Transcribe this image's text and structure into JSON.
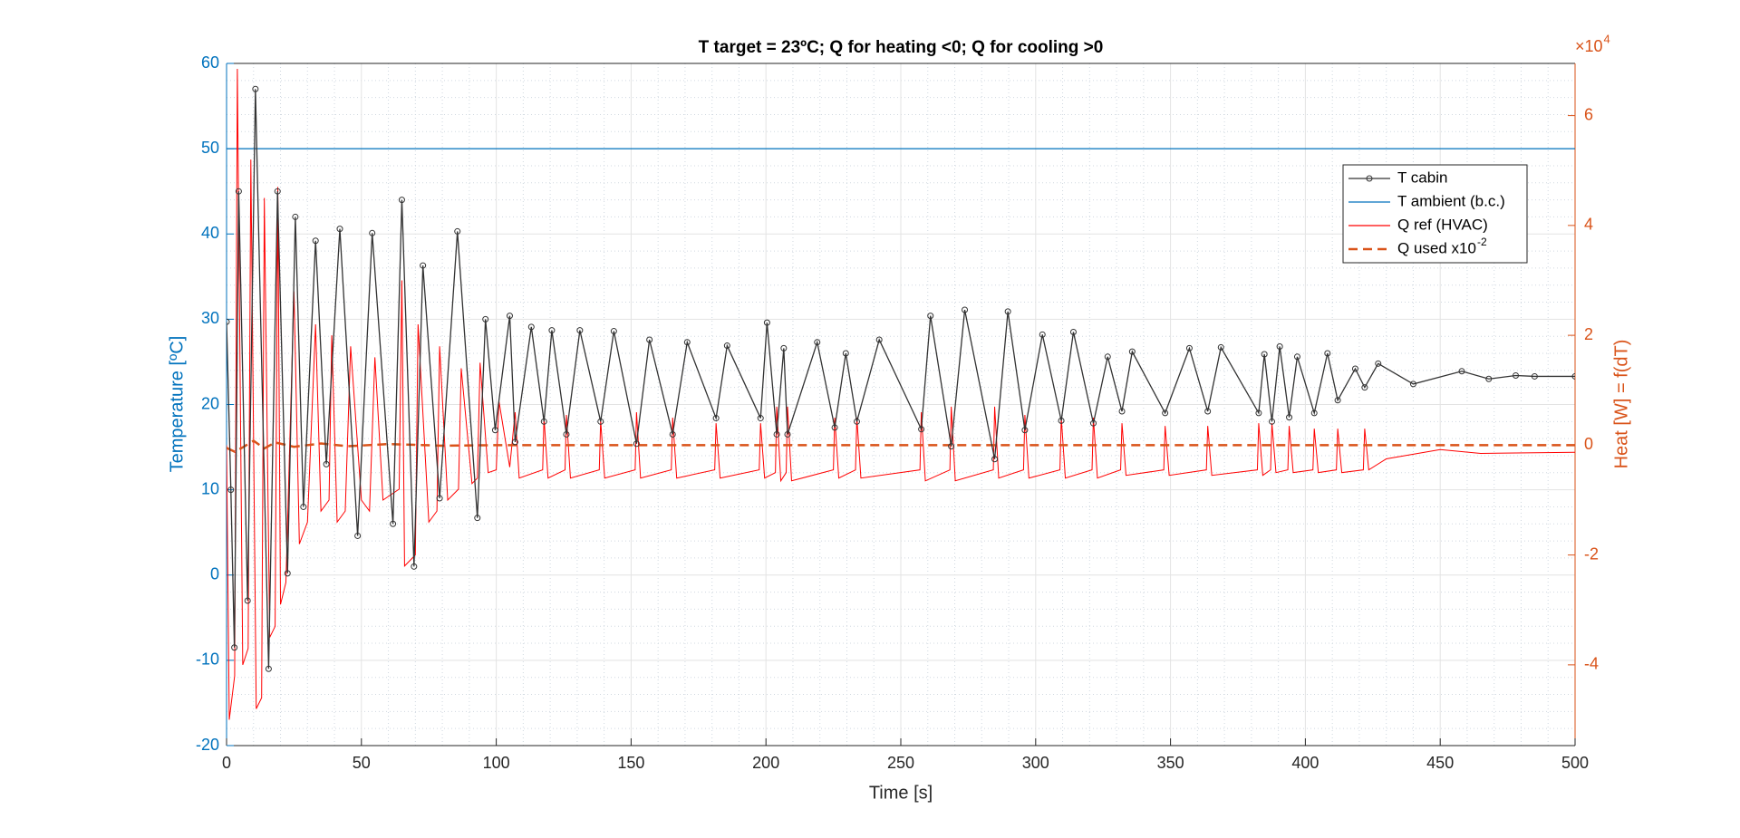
{
  "chart_data": {
    "type": "line",
    "title": "T target = 23ºC; Q for heating <0; Q for cooling >0",
    "x_label": "Time [s]",
    "y_label": "Temperature [ºC]",
    "y2_label": "Heat [W] = f(dT)",
    "y2_multiplier": "×10",
    "y2_multiplier_exponent": "4",
    "xlim": [
      0,
      500
    ],
    "xticks": [
      0,
      50,
      100,
      150,
      200,
      250,
      300,
      350,
      400,
      450,
      500
    ],
    "ylim": [
      -20,
      60
    ],
    "yticks": [
      -20,
      -10,
      0,
      10,
      20,
      30,
      40,
      50,
      60
    ],
    "y2lim": [
      -54700,
      69500
    ],
    "y2ticks": [
      {
        "value": -40000,
        "label": "-4"
      },
      {
        "value": -20000,
        "label": "-2"
      },
      {
        "value": 0,
        "label": "0"
      },
      {
        "value": 20000,
        "label": "2"
      },
      {
        "value": 40000,
        "label": "4"
      },
      {
        "value": 60000,
        "label": "6"
      }
    ],
    "y_axis_color": "#0072bd",
    "y2_axis_color": "#d95319",
    "grid": true,
    "minor_grid": true,
    "legend": "northeast",
    "series": [
      {
        "name": "T cabin",
        "color": "#333333",
        "marker": "o",
        "line_style": "solid",
        "x": [
          0,
          1.6,
          2.9,
          4.5,
          7.8,
          10.7,
          15.6,
          18.9,
          22.6,
          25.5,
          28.5,
          33,
          37,
          42,
          48.6,
          54,
          61.7,
          65,
          69.5,
          72.8,
          79,
          85.6,
          93,
          96,
          99.6,
          105,
          107,
          113,
          117.7,
          120.6,
          126,
          131,
          138.7,
          143.6,
          152,
          156.8,
          165.4,
          170.8,
          181.5,
          185.6,
          198,
          200.4,
          204,
          206.6,
          208,
          219,
          225.5,
          229.6,
          233.7,
          242,
          257.6,
          261,
          268.7,
          273.7,
          284.8,
          289.7,
          296,
          302.5,
          309.5,
          314,
          321.4,
          326.7,
          332,
          335.8,
          348,
          357,
          363.8,
          368.7,
          382.7,
          384.8,
          387.6,
          390.5,
          394,
          397,
          403.3,
          408.2,
          412,
          418.5,
          422,
          427,
          440,
          458,
          468,
          478,
          485,
          500
        ],
        "values": [
          29.7,
          10,
          -8.5,
          45,
          -3,
          57,
          -11,
          45,
          0.2,
          42,
          8,
          39.2,
          13,
          40.6,
          4.6,
          40.1,
          6,
          44,
          1,
          36.3,
          9,
          40.3,
          6.7,
          30,
          17,
          30.4,
          15.6,
          29.1,
          18,
          28.7,
          16.5,
          28.7,
          18,
          28.6,
          15.4,
          27.6,
          16.5,
          27.3,
          18.4,
          26.9,
          18.4,
          29.6,
          16.5,
          26.6,
          16.5,
          27.3,
          17.3,
          26,
          18,
          27.6,
          17.1,
          30.4,
          15.1,
          31.1,
          13.6,
          30.9,
          17,
          28.2,
          18.1,
          28.5,
          17.8,
          25.6,
          19.2,
          26.2,
          19,
          26.6,
          19.2,
          26.7,
          19,
          25.9,
          18,
          26.8,
          18.5,
          25.6,
          19,
          26,
          20.5,
          24.2,
          22,
          24.8,
          22.4,
          23.9,
          23,
          23.4,
          23.3,
          23.3
        ]
      },
      {
        "name": "T ambient (b.c.)",
        "color": "#0072bd",
        "line_style": "solid",
        "x": [
          0,
          500
        ],
        "values": [
          50,
          50
        ]
      },
      {
        "name": "Q ref (HVAC)",
        "color": "#ff0000",
        "line_style": "solid",
        "axis": "y2",
        "x": [
          0,
          1,
          3,
          4,
          6,
          8,
          9,
          11,
          13,
          14,
          16,
          18,
          19,
          20,
          22,
          25,
          27,
          30,
          33,
          35,
          38,
          39,
          41,
          44,
          46,
          50,
          53,
          55,
          58,
          64,
          65,
          66,
          70,
          71,
          75,
          78,
          79,
          82,
          86,
          87,
          91,
          93,
          94,
          97,
          100,
          101,
          105,
          107,
          108.5,
          117.2,
          117.7,
          119.2,
          125.5,
          126,
          127.5,
          138.2,
          138.7,
          140.2,
          151.5,
          152,
          153.5,
          164.9,
          165.4,
          166.9,
          181,
          181.5,
          183,
          197.5,
          198,
          199.5,
          203.5,
          204,
          205.5,
          207.5,
          208,
          209.5,
          225,
          225.5,
          227,
          233.2,
          233.7,
          235.2,
          257.1,
          257.6,
          259.1,
          268.2,
          268.7,
          270.2,
          284.3,
          284.8,
          286.3,
          295.5,
          296,
          297.5,
          309,
          309.5,
          311,
          320.9,
          321.4,
          322.9,
          331.5,
          332,
          333.5,
          347.5,
          348,
          349.5,
          363.3,
          363.8,
          365.3,
          382.2,
          382.7,
          384.2,
          387.1,
          387.6,
          389.1,
          393.5,
          394,
          395.5,
          402.8,
          403.3,
          404.8,
          411.5,
          412,
          413.5,
          421.5,
          422,
          423.5,
          430,
          450,
          465,
          500
        ],
        "values": [
          0,
          -50000,
          -42000,
          68500,
          -40000,
          -37000,
          52000,
          -48000,
          -46000,
          45000,
          -35000,
          -33000,
          47000,
          -29000,
          -25000,
          28000,
          -18000,
          -14000,
          22000,
          -12000,
          -10000,
          20000,
          -14000,
          -12000,
          18000,
          -10000,
          -12000,
          16000,
          -10000,
          -8000,
          30000,
          -22000,
          -20000,
          22000,
          -14000,
          -12000,
          18000,
          -10000,
          -8000,
          14000,
          -7000,
          -6000,
          15000,
          -5000,
          -4500,
          8000,
          -4000,
          6000,
          -6000,
          -4500,
          5000,
          -6000,
          -4500,
          5500,
          -6000,
          -4500,
          4500,
          -6000,
          -4500,
          6000,
          -6000,
          -4500,
          5000,
          -6000,
          -4500,
          4000,
          -6000,
          -4500,
          4000,
          -6000,
          -5000,
          7000,
          -6500,
          -5000,
          7000,
          -6500,
          -4500,
          5000,
          -6000,
          -4500,
          5000,
          -6000,
          -4500,
          6000,
          -6500,
          -4500,
          7000,
          -6500,
          -4500,
          7000,
          -6000,
          -4500,
          5500,
          -6000,
          -4500,
          5000,
          -6000,
          -4500,
          5000,
          -6000,
          -4500,
          4000,
          -5500,
          -4500,
          3500,
          -5500,
          -4500,
          3500,
          -5500,
          -4500,
          4000,
          -5500,
          -4500,
          4000,
          -5000,
          -4500,
          3500,
          -5000,
          -4500,
          3000,
          -5000,
          -4500,
          3000,
          -5000,
          -4500,
          3000,
          -4500,
          -2500,
          -800,
          -1500,
          -1300
        ]
      },
      {
        "name": "Q used x10",
        "name_superscript": "-2",
        "color": "#d95319",
        "line_style": "dashed",
        "axis": "y2",
        "x": [
          0,
          3,
          6,
          10,
          14,
          18,
          25,
          35,
          45,
          60,
          80,
          100,
          500
        ],
        "values": [
          -500,
          -1200,
          -400,
          800,
          -600,
          500,
          -300,
          300,
          -200,
          200,
          -100,
          0,
          0
        ]
      }
    ]
  }
}
